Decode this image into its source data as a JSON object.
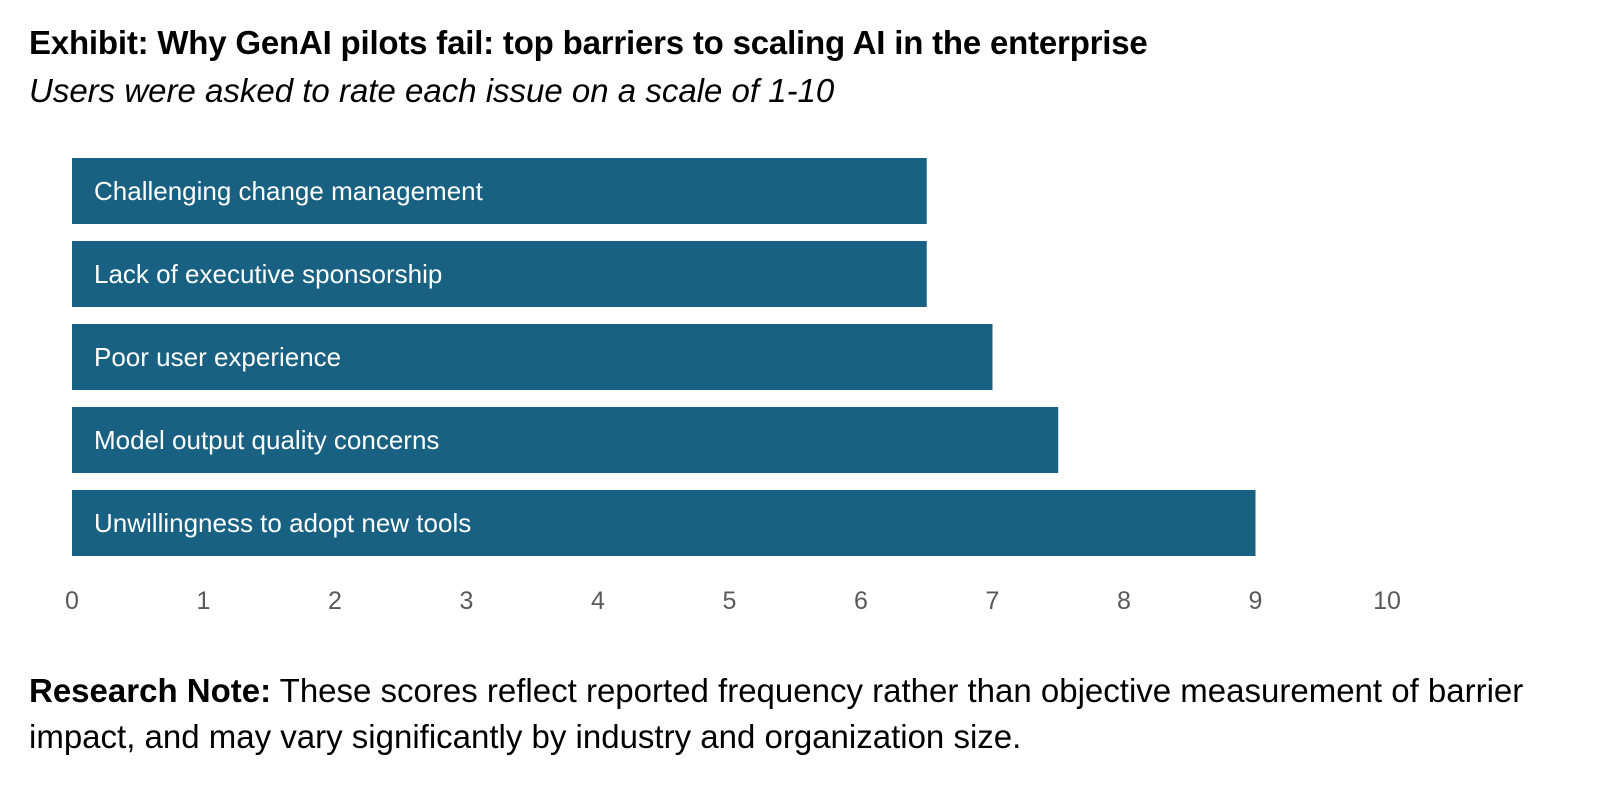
{
  "header": {
    "title": "Exhibit: Why GenAI pilots fail: top barriers to scaling AI in the enterprise",
    "subtitle": "Users were asked to rate each issue on a scale of 1-10"
  },
  "note": {
    "label": "Research Note:",
    "text": "These scores reflect reported frequency rather than objective measurement of barrier impact, and may vary significantly by industry and organization size."
  },
  "colors": {
    "bar": "#186182",
    "bar_label": "#ffffff",
    "tick_label": "#595959"
  },
  "chart_data": {
    "type": "bar",
    "orientation": "horizontal",
    "categories": [
      "Challenging change management",
      "Lack of executive sponsorship",
      "Poor user experience",
      "Model output quality concerns",
      "Unwillingness to adopt new tools"
    ],
    "values": [
      6.5,
      6.5,
      7,
      7.5,
      9
    ],
    "xlim": [
      0,
      10
    ],
    "xticks": [
      "0",
      "1",
      "2",
      "3",
      "4",
      "5",
      "6",
      "7",
      "8",
      "9",
      "10"
    ],
    "grid": false,
    "legend": "none"
  }
}
